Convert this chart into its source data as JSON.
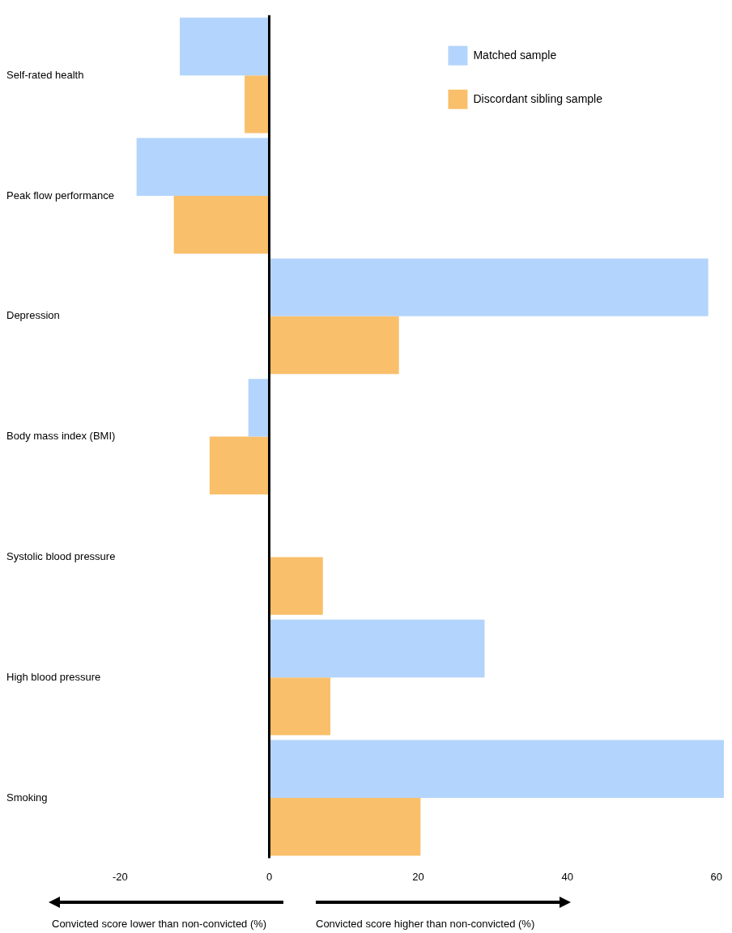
{
  "chart_data": {
    "type": "bar",
    "orientation": "horizontal",
    "categories": [
      "Self-rated health",
      "Peak flow performance",
      "Depression",
      "Body mass index (BMI)",
      "Systolic blood pressure",
      "High blood pressure",
      "Smoking"
    ],
    "series": [
      {
        "name": "Matched sample",
        "color": "#b3d4fc",
        "values": [
          -12,
          -17.8,
          58.9,
          -2.8,
          null,
          28.9,
          61
        ]
      },
      {
        "name": "Discordant sibling sample",
        "color": "#f9bf6a",
        "values": [
          -3.3,
          -12.8,
          17.4,
          -8,
          7.2,
          8.2,
          20.3
        ]
      }
    ],
    "xlim": [
      -20,
      61
    ],
    "xticks": [
      -20,
      0,
      20,
      40,
      60
    ],
    "ref_lines": [
      {
        "axis": "x",
        "value": 0,
        "color": "#000000"
      }
    ],
    "annotations": [
      "Convicted score lower than non-convicted (%)",
      "Convicted score higher than non-convicted (%)"
    ],
    "legend": "top right",
    "grid": false
  }
}
